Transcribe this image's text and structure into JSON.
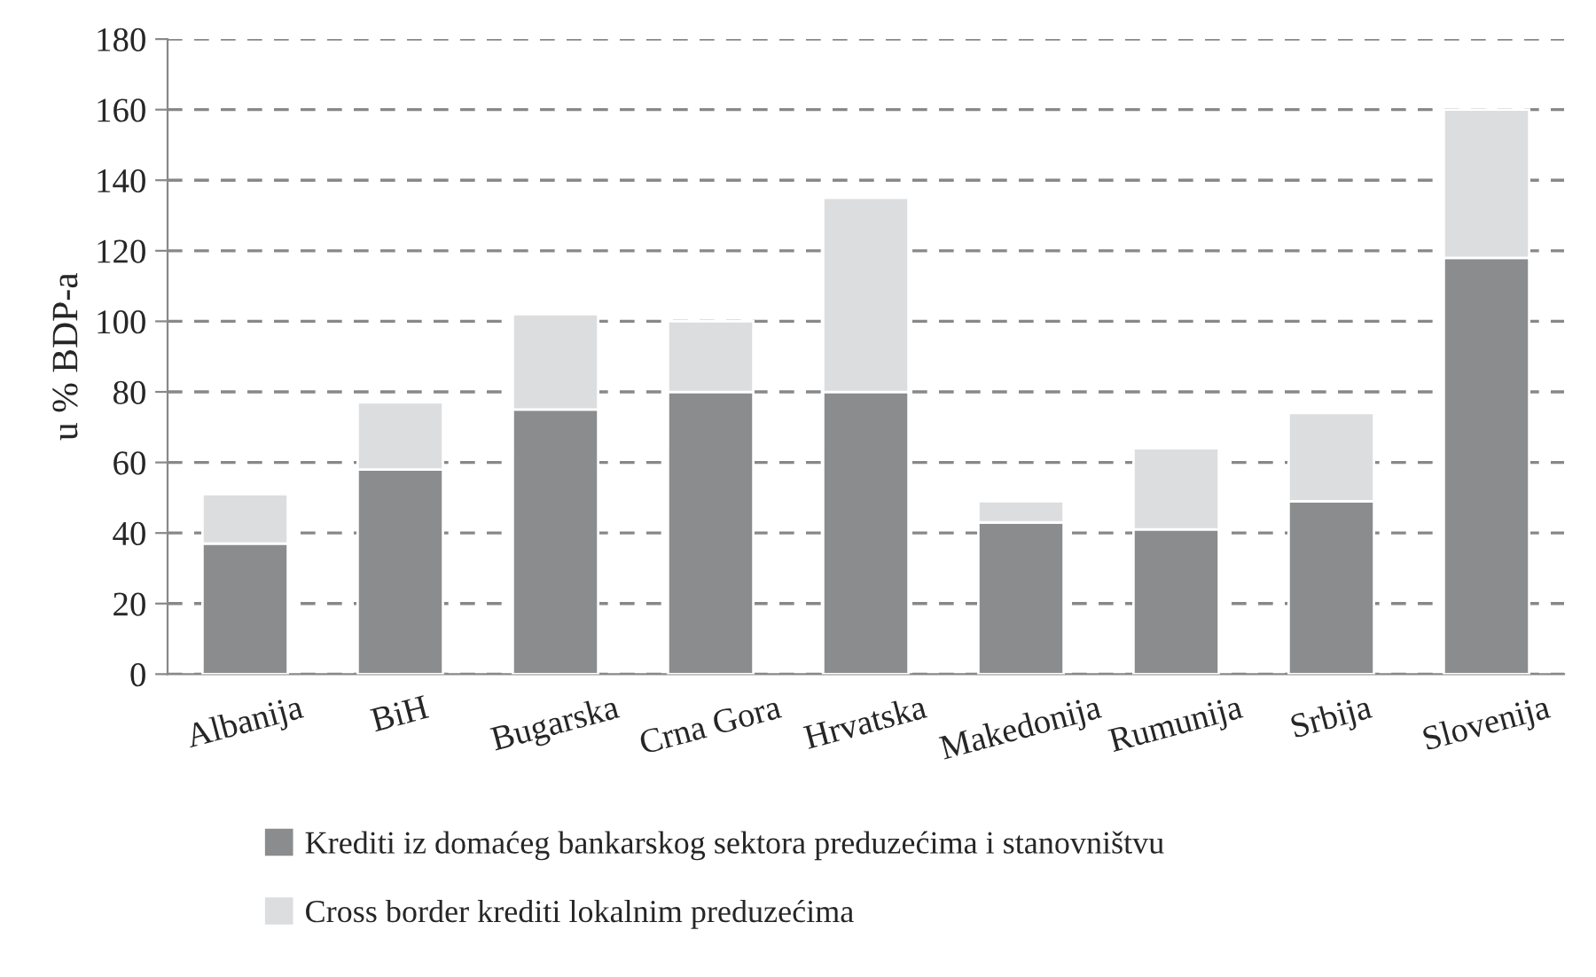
{
  "chart_data": {
    "type": "bar",
    "stacked": true,
    "ylabel": "u % BDP-a",
    "categories": [
      "Albanija",
      "BiH",
      "Bugarska",
      "Crna Gora",
      "Hrvatska",
      "Makedonija",
      "Rumunija",
      "Srbija",
      "Slovenija"
    ],
    "series": [
      {
        "name": "Krediti iz domaćeg bankarskog sektora preduzećima i stanovništvu",
        "color": "#8b8c8e",
        "values": [
          37,
          58,
          75,
          80,
          80,
          43,
          41,
          49,
          118
        ]
      },
      {
        "name": "Cross border krediti lokalnim preduzećima",
        "color": "#dcdddf",
        "values": [
          14,
          19,
          27,
          20,
          55,
          6,
          23,
          25,
          42
        ]
      }
    ],
    "ylim": [
      0,
      180
    ],
    "yticks": [
      0,
      20,
      40,
      60,
      80,
      100,
      120,
      140,
      160,
      180
    ],
    "grid": "y",
    "legend": "bottom"
  }
}
